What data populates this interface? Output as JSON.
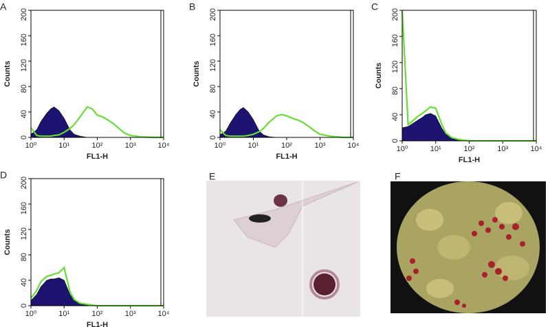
{
  "chart_data": [
    {
      "type": "area",
      "panel": "A",
      "xlabel": "FL1-H",
      "ylabel": "Counts",
      "xscale": "log",
      "xlim": [
        1,
        10000
      ],
      "ylim": [
        0,
        200
      ],
      "xticks": [
        {
          "value": 1,
          "label": "10⁰"
        },
        {
          "value": 10,
          "label": "10¹"
        },
        {
          "value": 100,
          "label": "10²"
        },
        {
          "value": 1000,
          "label": "10³"
        },
        {
          "value": 10000,
          "label": "10⁴"
        }
      ],
      "yticks": [
        0,
        40,
        80,
        120,
        160,
        200
      ],
      "x": [
        1,
        1.5,
        2,
        3,
        4,
        5,
        7,
        10,
        15,
        20,
        30,
        50,
        70,
        100,
        150,
        200,
        300,
        500,
        700,
        1000,
        2000,
        5000,
        10000
      ],
      "series": [
        {
          "style": "area",
          "color": "#1c1470",
          "values": [
            5,
            12,
            25,
            38,
            45,
            48,
            42,
            30,
            12,
            5,
            2,
            0,
            0,
            0,
            0,
            0,
            0,
            0,
            0,
            0,
            0,
            0,
            0
          ]
        },
        {
          "style": "line",
          "color": "#66dd33",
          "values": [
            15,
            3,
            2,
            2,
            2,
            3,
            4,
            8,
            14,
            20,
            32,
            48,
            45,
            35,
            32,
            28,
            22,
            12,
            6,
            3,
            1,
            0,
            0
          ]
        }
      ]
    },
    {
      "type": "area",
      "panel": "B",
      "xlabel": "FL1-H",
      "ylabel": "Counts",
      "xscale": "log",
      "xlim": [
        1,
        10000
      ],
      "ylim": [
        0,
        200
      ],
      "xticks": [
        {
          "value": 1,
          "label": "10⁰"
        },
        {
          "value": 10,
          "label": "10¹"
        },
        {
          "value": 100,
          "label": "10²"
        },
        {
          "value": 1000,
          "label": "10³"
        },
        {
          "value": 10000,
          "label": "10⁴"
        }
      ],
      "yticks": [
        0,
        40,
        80,
        120,
        160,
        200
      ],
      "x": [
        1,
        1.5,
        2,
        3,
        4,
        5,
        7,
        10,
        15,
        20,
        30,
        50,
        70,
        100,
        150,
        200,
        300,
        500,
        700,
        1000,
        2000,
        5000,
        10000
      ],
      "series": [
        {
          "style": "area",
          "color": "#1c1470",
          "values": [
            4,
            10,
            22,
            36,
            44,
            47,
            40,
            28,
            10,
            4,
            1,
            0,
            0,
            0,
            0,
            0,
            0,
            0,
            0,
            0,
            0,
            0,
            0
          ]
        },
        {
          "style": "line",
          "color": "#66dd33",
          "values": [
            12,
            3,
            2,
            2,
            2,
            2,
            3,
            5,
            9,
            14,
            24,
            34,
            36,
            34,
            30,
            28,
            24,
            16,
            10,
            5,
            2,
            0,
            0
          ]
        }
      ]
    },
    {
      "type": "area",
      "panel": "C",
      "xlabel": "FL1-H",
      "ylabel": "Counts",
      "xscale": "log",
      "xlim": [
        1,
        10000
      ],
      "ylim": [
        0,
        200
      ],
      "xticks": [
        {
          "value": 1,
          "label": "10⁰"
        },
        {
          "value": 10,
          "label": "10¹"
        },
        {
          "value": 100,
          "label": "10²"
        },
        {
          "value": 1000,
          "label": "10³"
        },
        {
          "value": 10000,
          "label": "10⁴"
        }
      ],
      "yticks": [
        0,
        40,
        80,
        120,
        160,
        200
      ],
      "x": [
        1,
        1.5,
        2,
        3,
        4,
        5,
        7,
        10,
        15,
        20,
        30,
        50,
        70,
        100,
        150,
        200,
        300,
        500,
        700,
        1000,
        2000,
        5000,
        10000
      ],
      "series": [
        {
          "style": "area",
          "color": "#1c1470",
          "values": [
            20,
            22,
            26,
            32,
            36,
            40,
            42,
            38,
            20,
            10,
            4,
            1,
            0,
            0,
            0,
            0,
            0,
            0,
            0,
            0,
            0,
            0,
            0
          ]
        },
        {
          "style": "line",
          "color": "#66dd33",
          "values": [
            200,
            25,
            30,
            38,
            42,
            46,
            52,
            50,
            26,
            12,
            5,
            2,
            1,
            0,
            0,
            0,
            0,
            0,
            0,
            0,
            0,
            0,
            0
          ]
        }
      ]
    },
    {
      "type": "area",
      "panel": "D",
      "xlabel": "FL1-H",
      "ylabel": "Counts",
      "xscale": "log",
      "xlim": [
        1,
        10000
      ],
      "ylim": [
        0,
        200
      ],
      "xticks": [
        {
          "value": 1,
          "label": "10⁰"
        },
        {
          "value": 10,
          "label": "10¹"
        },
        {
          "value": 100,
          "label": "10²"
        },
        {
          "value": 1000,
          "label": "10³"
        },
        {
          "value": 10000,
          "label": "10⁴"
        }
      ],
      "yticks": [
        0,
        40,
        80,
        120,
        160,
        200
      ],
      "x": [
        1,
        1.5,
        2,
        3,
        4,
        5,
        7,
        10,
        15,
        20,
        30,
        50,
        70,
        100,
        150,
        200,
        300,
        500,
        700,
        1000,
        2000,
        5000,
        10000
      ],
      "series": [
        {
          "style": "area",
          "color": "#1c1470",
          "values": [
            8,
            18,
            30,
            40,
            42,
            42,
            44,
            40,
            18,
            8,
            3,
            1,
            0,
            0,
            0,
            0,
            0,
            0,
            0,
            0,
            0,
            0,
            0
          ]
        },
        {
          "style": "line",
          "color": "#66dd33",
          "values": [
            12,
            24,
            38,
            46,
            48,
            50,
            52,
            60,
            22,
            10,
            4,
            2,
            1,
            0,
            0,
            0,
            0,
            0,
            0,
            0,
            0,
            0,
            0
          ]
        }
      ]
    }
  ],
  "images": [
    {
      "label": "E"
    },
    {
      "label": "F"
    }
  ]
}
